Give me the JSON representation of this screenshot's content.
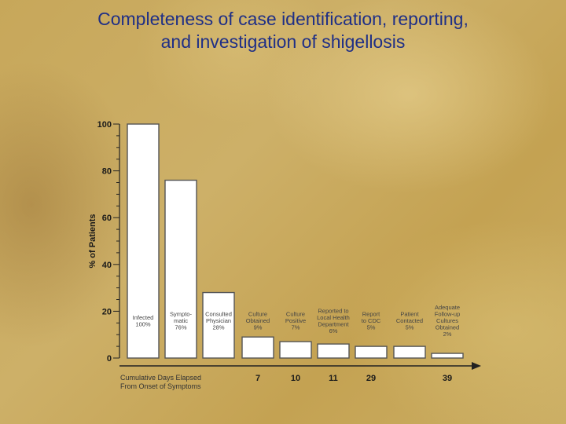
{
  "title_line1": "Completeness of case identification, reporting,",
  "title_line2": "and investigation of shigellosis",
  "chart_data": {
    "type": "bar",
    "title": "Completeness of case identification, reporting, and investigation of shigellosis",
    "ylabel": "% of Patients",
    "ylim": [
      0,
      100
    ],
    "yticks": [
      0,
      20,
      40,
      60,
      80,
      100
    ],
    "xlabel_line1": "Cumulative Days Elapsed",
    "xlabel_line2": "From Onset of Symptoms",
    "categories": [
      {
        "lines": [
          "Infected",
          "100%"
        ],
        "value": 100,
        "days": ""
      },
      {
        "lines": [
          "Sympto-",
          "matic",
          "76%"
        ],
        "value": 76,
        "days": ""
      },
      {
        "lines": [
          "Consulted",
          "Physician",
          "28%"
        ],
        "value": 28,
        "days": ""
      },
      {
        "lines": [
          "Culture",
          "Obtained",
          "9%"
        ],
        "value": 9,
        "days": "7"
      },
      {
        "lines": [
          "Culture",
          "Positive",
          "7%"
        ],
        "value": 7,
        "days": "10"
      },
      {
        "lines": [
          "Reported to",
          "Local Health",
          "Department",
          "6%"
        ],
        "value": 6,
        "days": "11"
      },
      {
        "lines": [
          "Report",
          "to CDC",
          "5%"
        ],
        "value": 5,
        "days": "29"
      },
      {
        "lines": [
          "Patient",
          "Contacted",
          "5%"
        ],
        "value": 5,
        "days": ""
      },
      {
        "lines": [
          "Adequate",
          "Follow-up",
          "Cultures",
          "Obtained",
          "2%"
        ],
        "value": 2,
        "days": "39"
      }
    ]
  }
}
